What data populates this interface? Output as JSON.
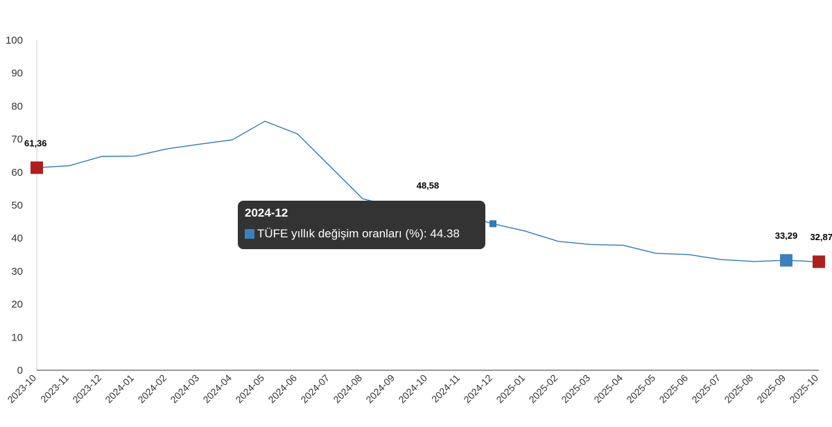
{
  "chart_data": {
    "type": "line",
    "categories": [
      "2023-10",
      "2023-11",
      "2023-12",
      "2024-01",
      "2024-02",
      "2024-03",
      "2024-04",
      "2024-05",
      "2024-06",
      "2024-07",
      "2024-08",
      "2024-09",
      "2024-10",
      "2024-11",
      "2024-12",
      "2025-01",
      "2025-02",
      "2025-03",
      "2025-04",
      "2025-05",
      "2025-06",
      "2025-07",
      "2025-08",
      "2025-09",
      "2025-10"
    ],
    "series": [
      {
        "name": "TÜFE yıllık değişim oranları (%)",
        "values": [
          61.36,
          61.98,
          64.77,
          64.86,
          67.07,
          68.5,
          69.8,
          75.45,
          71.6,
          61.78,
          51.97,
          49.38,
          48.58,
          47.09,
          44.38,
          42.12,
          39.05,
          38.1,
          37.86,
          35.41,
          35.05,
          33.52,
          32.95,
          33.29,
          32.87
        ]
      }
    ],
    "ylim": [
      0,
      100
    ],
    "yticks": [
      0,
      10,
      20,
      30,
      40,
      50,
      60,
      70,
      80,
      90,
      100
    ],
    "grid": false,
    "line_color": "#2f7ab8",
    "highlight_markers": [
      {
        "category": "2023-10",
        "label": "61,36",
        "color": "#b01e1e"
      },
      {
        "category": "2024-10",
        "label": "48,58",
        "color": "#3a0a0a"
      },
      {
        "category": "2025-09",
        "label": "33,29",
        "color": "#3d80c0"
      },
      {
        "category": "2025-10",
        "label": "32,87",
        "color": "#b01e1e"
      }
    ],
    "hover_marker": {
      "category": "2024-12",
      "color": "#2f7ab8"
    }
  },
  "tooltip": {
    "title": "2024-12",
    "series_text": "TÜFE yıllık değişim oranları (%): 44.38",
    "swatch_color": "#3d80c0"
  }
}
